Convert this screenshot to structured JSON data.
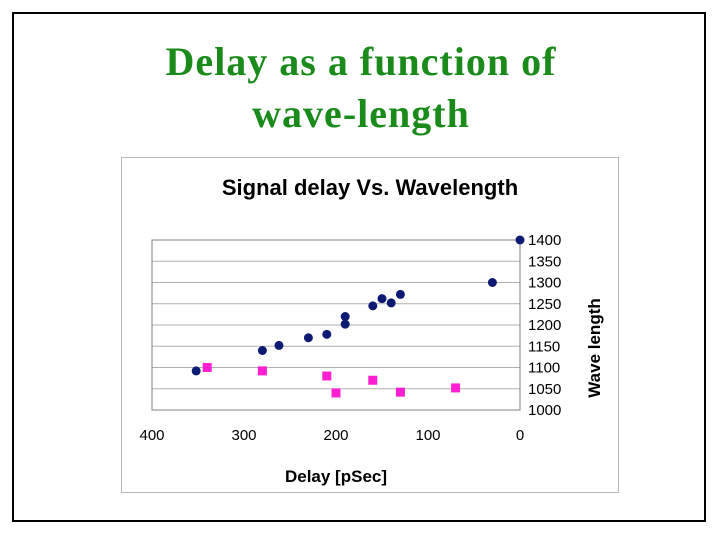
{
  "slide": {
    "title_lines": [
      "Delay as a function of",
      "wave-length"
    ]
  },
  "colors": {
    "title": "#1a8a1a",
    "series1": "#0d1a73",
    "series2": "#ff1fd2",
    "grid": "#b0b0b0"
  },
  "chart_data": {
    "type": "scatter",
    "title": "Signal delay Vs. Wavelength",
    "xlabel": "Delay [pSec]",
    "ylabel": "Wave length",
    "xlim": [
      400,
      0
    ],
    "ylim": [
      1000,
      1400
    ],
    "x_reversed": true,
    "y_axis_side": "right",
    "x_ticks": [
      400,
      300,
      200,
      100,
      0
    ],
    "y_ticks": [
      1000,
      1050,
      1100,
      1150,
      1200,
      1250,
      1300,
      1350,
      1400
    ],
    "grid": "horizontal",
    "legend": "none",
    "series": [
      {
        "marker": "circle",
        "color": "#0d1a73",
        "points": [
          {
            "x": 352,
            "y": 1092
          },
          {
            "x": 280,
            "y": 1140
          },
          {
            "x": 262,
            "y": 1152
          },
          {
            "x": 230,
            "y": 1170
          },
          {
            "x": 210,
            "y": 1178
          },
          {
            "x": 190,
            "y": 1220
          },
          {
            "x": 190,
            "y": 1202
          },
          {
            "x": 160,
            "y": 1245
          },
          {
            "x": 150,
            "y": 1262
          },
          {
            "x": 140,
            "y": 1252
          },
          {
            "x": 130,
            "y": 1272
          },
          {
            "x": 30,
            "y": 1300
          },
          {
            "x": 0,
            "y": 1400
          }
        ]
      },
      {
        "marker": "square",
        "color": "#ff1fd2",
        "points": [
          {
            "x": 340,
            "y": 1100
          },
          {
            "x": 280,
            "y": 1092
          },
          {
            "x": 210,
            "y": 1080
          },
          {
            "x": 200,
            "y": 1040
          },
          {
            "x": 160,
            "y": 1070
          },
          {
            "x": 130,
            "y": 1042
          },
          {
            "x": 70,
            "y": 1052
          }
        ]
      }
    ]
  }
}
